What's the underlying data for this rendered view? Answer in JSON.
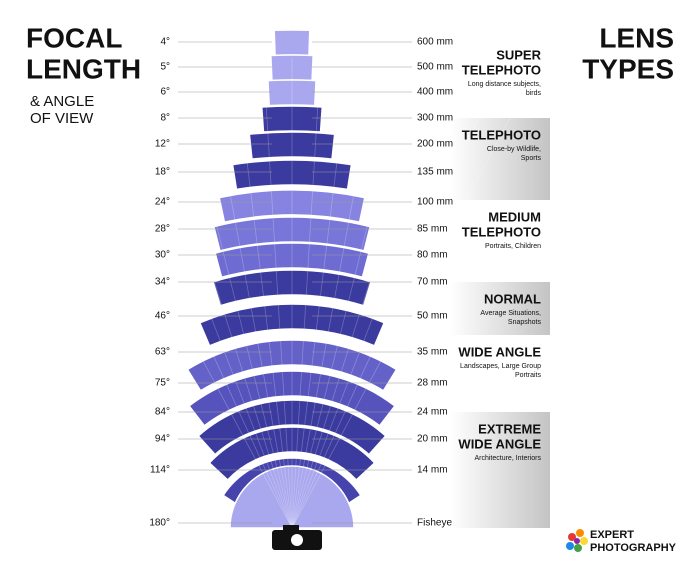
{
  "title": {
    "line1": "FOCAL",
    "line2": "LENGTH"
  },
  "subtitle": {
    "line1": "& ANGLE",
    "line2": "OF VIEW"
  },
  "right_title": {
    "line1": "LENS",
    "line2": "TYPES"
  },
  "rows": [
    {
      "angle": "4°",
      "focal": "600 mm"
    },
    {
      "angle": "5°",
      "focal": "500 mm"
    },
    {
      "angle": "6°",
      "focal": "400 mm"
    },
    {
      "angle": "8°",
      "focal": "300 mm"
    },
    {
      "angle": "12°",
      "focal": "200 mm"
    },
    {
      "angle": "18°",
      "focal": "135 mm"
    },
    {
      "angle": "24°",
      "focal": "100 mm"
    },
    {
      "angle": "28°",
      "focal": "85 mm"
    },
    {
      "angle": "30°",
      "focal": "80 mm"
    },
    {
      "angle": "34°",
      "focal": "70 mm"
    },
    {
      "angle": "46°",
      "focal": "50 mm"
    },
    {
      "angle": "63°",
      "focal": "35 mm"
    },
    {
      "angle": "75°",
      "focal": "28 mm"
    },
    {
      "angle": "84°",
      "focal": "24 mm"
    },
    {
      "angle": "94°",
      "focal": "20 mm"
    },
    {
      "angle": "114°",
      "focal": "14 mm"
    },
    {
      "angle": "180°",
      "focal": "Fisheye"
    }
  ],
  "lens_types": [
    {
      "name": [
        "SUPER",
        "TELEPHOTO"
      ],
      "desc": [
        "Long distance subjects,",
        "birds"
      ]
    },
    {
      "name": [
        "TELEPHOTO"
      ],
      "desc": [
        "Close-by Wildlife,",
        "Sports"
      ]
    },
    {
      "name": [
        "MEDIUM",
        "TELEPHOTO"
      ],
      "desc": [
        "Portraits, Children"
      ]
    },
    {
      "name": [
        "NORMAL"
      ],
      "desc": [
        "Average Situations,",
        "Snapshots"
      ]
    },
    {
      "name": [
        "WIDE ANGLE"
      ],
      "desc": [
        "Landscapes, Large Group",
        "Portraits"
      ]
    },
    {
      "name": [
        "EXTREME",
        "WIDE ANGLE"
      ],
      "desc": [
        "Architecture, Interiors"
      ]
    }
  ],
  "logo": {
    "line1": "EXPERT",
    "line2": "PHOTOGRAPHY"
  }
}
